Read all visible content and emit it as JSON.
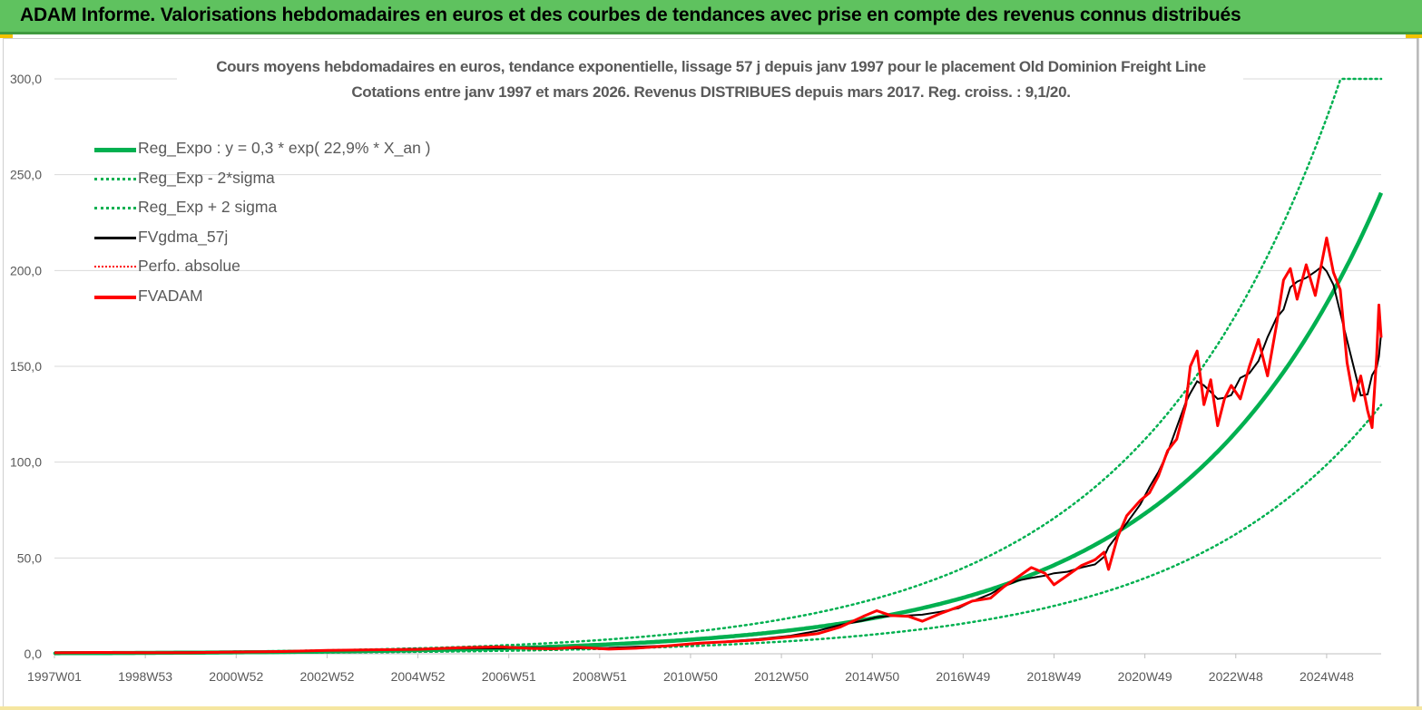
{
  "banner": {
    "title": "ADAM Informe. Valorisations hebdomadaires en euros et des courbes de tendances avec prise en compte des revenus connus distribués"
  },
  "chart_data": {
    "type": "line",
    "title_line1": "Cours moyens hebdomadaires en euros, tendance exponentielle, lissage 57 j depuis janv 1997  pour le placement Old Dominion Freight Line",
    "title_line2": "Cotations entre janv 1997 et mars 2026. Revenus DISTRIBUES depuis mars 2017. Reg. croiss. : 9,1/20.",
    "xlabel": "",
    "ylabel": "",
    "x_range_years": [
      1997.0,
      2026.2
    ],
    "x_ticks": [
      {
        "label": "1997W01",
        "year": 1997.0
      },
      {
        "label": "1998W53",
        "year": 1999.0
      },
      {
        "label": "2000W52",
        "year": 2001.0
      },
      {
        "label": "2002W52",
        "year": 2003.0
      },
      {
        "label": "2004W52",
        "year": 2005.0
      },
      {
        "label": "2006W51",
        "year": 2007.0
      },
      {
        "label": "2008W51",
        "year": 2009.0
      },
      {
        "label": "2010W50",
        "year": 2011.0
      },
      {
        "label": "2012W50",
        "year": 2013.0
      },
      {
        "label": "2014W50",
        "year": 2015.0
      },
      {
        "label": "2016W49",
        "year": 2017.0
      },
      {
        "label": "2018W49",
        "year": 2019.0
      },
      {
        "label": "2020W49",
        "year": 2021.0
      },
      {
        "label": "2022W48",
        "year": 2023.0
      },
      {
        "label": "2024W48",
        "year": 2025.0
      }
    ],
    "ylim": [
      0,
      300
    ],
    "y_ticks": [
      "0,0",
      "50,0",
      "100,0",
      "150,0",
      "200,0",
      "250,0",
      "300,0"
    ],
    "y_tick_values": [
      0,
      50,
      100,
      150,
      200,
      250,
      300
    ],
    "grid": "horizontal",
    "legend_position": "top-left",
    "regression": {
      "a": 0.3,
      "rate": 0.229,
      "lower_factor": 0.54,
      "upper_factor": 1.53,
      "start_year": 1997.0
    },
    "series": [
      {
        "name": "Reg_Expo : y = 0,3 * exp( 22,9% *  X_an )",
        "color": "#00b050",
        "style": "solid-thick"
      },
      {
        "name": "Reg_Exp - 2*sigma",
        "color": "#00b050",
        "style": "dotted"
      },
      {
        "name": "Reg_Exp + 2 sigma",
        "color": "#00b050",
        "style": "dotted"
      },
      {
        "name": "FVgdma_57j",
        "color": "#000000",
        "style": "solid"
      },
      {
        "name": "Perfo. absolue",
        "color": "#ff0000",
        "style": "dotted"
      },
      {
        "name": "FVADAM",
        "color": "#ff0000",
        "style": "solid-thick",
        "points": [
          [
            1997.0,
            0.5
          ],
          [
            1998.0,
            0.7
          ],
          [
            1999.0,
            0.6
          ],
          [
            2000.0,
            0.6
          ],
          [
            2001.0,
            0.9
          ],
          [
            2002.0,
            1.2
          ],
          [
            2003.0,
            1.8
          ],
          [
            2004.0,
            2.1
          ],
          [
            2005.0,
            2.3
          ],
          [
            2006.0,
            3.2
          ],
          [
            2006.8,
            3.6
          ],
          [
            2007.5,
            2.8
          ],
          [
            2008.0,
            2.6
          ],
          [
            2008.5,
            3.4
          ],
          [
            2009.2,
            2.4
          ],
          [
            2009.8,
            2.9
          ],
          [
            2010.5,
            4.1
          ],
          [
            2011.2,
            5.6
          ],
          [
            2011.8,
            6.3
          ],
          [
            2012.5,
            7.3
          ],
          [
            2013.2,
            8.9
          ],
          [
            2013.8,
            10.5
          ],
          [
            2014.3,
            14.0
          ],
          [
            2014.8,
            19.5
          ],
          [
            2015.1,
            22.5
          ],
          [
            2015.4,
            20.0
          ],
          [
            2015.8,
            19.5
          ],
          [
            2016.1,
            17.0
          ],
          [
            2016.5,
            21.0
          ],
          [
            2016.9,
            24.5
          ],
          [
            2017.2,
            27.5
          ],
          [
            2017.6,
            29.0
          ],
          [
            2017.9,
            35.0
          ],
          [
            2018.2,
            40.0
          ],
          [
            2018.5,
            45.0
          ],
          [
            2018.8,
            42.0
          ],
          [
            2019.0,
            36.0
          ],
          [
            2019.3,
            41.0
          ],
          [
            2019.6,
            46.0
          ],
          [
            2019.9,
            49.0
          ],
          [
            2020.1,
            53.0
          ],
          [
            2020.2,
            44.0
          ],
          [
            2020.4,
            61.0
          ],
          [
            2020.6,
            72.0
          ],
          [
            2020.9,
            80.0
          ],
          [
            2021.1,
            84.0
          ],
          [
            2021.3,
            93.0
          ],
          [
            2021.5,
            106.0
          ],
          [
            2021.7,
            112.0
          ],
          [
            2021.9,
            130.0
          ],
          [
            2022.0,
            150.0
          ],
          [
            2022.15,
            158.0
          ],
          [
            2022.3,
            130.0
          ],
          [
            2022.45,
            143.0
          ],
          [
            2022.6,
            119.0
          ],
          [
            2022.75,
            133.0
          ],
          [
            2022.9,
            140.0
          ],
          [
            2023.1,
            133.0
          ],
          [
            2023.3,
            150.0
          ],
          [
            2023.5,
            164.0
          ],
          [
            2023.7,
            145.0
          ],
          [
            2023.9,
            172.0
          ],
          [
            2024.05,
            195.0
          ],
          [
            2024.2,
            201.0
          ],
          [
            2024.35,
            185.0
          ],
          [
            2024.55,
            203.0
          ],
          [
            2024.75,
            187.0
          ],
          [
            2024.9,
            205.0
          ],
          [
            2025.0,
            217.0
          ],
          [
            2025.15,
            199.0
          ],
          [
            2025.3,
            190.0
          ],
          [
            2025.45,
            152.0
          ],
          [
            2025.6,
            132.0
          ],
          [
            2025.75,
            145.0
          ],
          [
            2025.9,
            127.0
          ],
          [
            2026.0,
            118.0
          ],
          [
            2026.1,
            155.0
          ],
          [
            2026.15,
            182.0
          ],
          [
            2026.2,
            165.0
          ]
        ]
      }
    ]
  }
}
